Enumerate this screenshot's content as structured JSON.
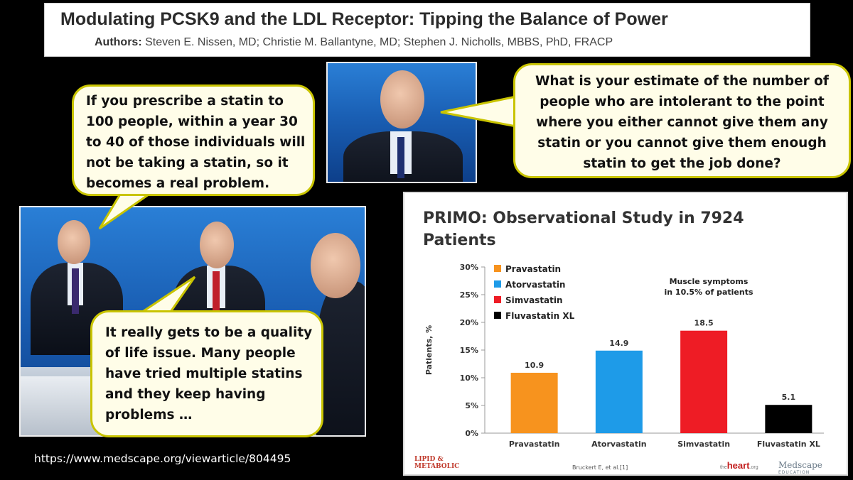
{
  "header": {
    "title": "Modulating PCSK9 and the LDL Receptor: Tipping the Balance of Power",
    "authors_label": "Authors:",
    "authors": "Steven E. Nissen, MD; Christie M. Ballantyne, MD; Stephen J. Nicholls, MBBS, PhD, FRACP"
  },
  "bubbles": {
    "left": "If you prescribe a statin to 100 people, within a year 30 to 40 of those individuals will not be taking a statin, so it becomes a real problem.",
    "right": "What is your estimate of the number of people who are intolerant to the point where you either cannot give them any statin or you cannot give them enough statin to get the job done?",
    "center": "It really gets to be a quality of life issue. Many people have tried multiple statins and they keep having problems …"
  },
  "slide": {
    "title": "PRIMO: Observational Study in 7924 Patients",
    "logo_left": "LIPID & METABOLIC",
    "citation": "Bruckert E, et al.[1]",
    "logo_heart": "heart",
    "logo_heart_prefix": "the",
    "logo_heart_suffix": ".org",
    "logo_medscape": "Medscape",
    "logo_medscape_sub": "EDUCATION"
  },
  "chart_data": {
    "type": "bar",
    "categories": [
      "Pravastatin",
      "Atorvastatin",
      "Simvastatin",
      "Fluvastatin XL"
    ],
    "values": [
      10.9,
      14.9,
      18.5,
      5.1
    ],
    "value_labels": [
      "10.9",
      "14.9",
      "18.5",
      "5.1"
    ],
    "colors": [
      "#f7931e",
      "#1e9be8",
      "#ee1c25",
      "#000000"
    ],
    "ylabel": "Patients, %",
    "ylim": [
      0,
      30
    ],
    "yticks": [
      0,
      5,
      10,
      15,
      20,
      25,
      30
    ],
    "ytick_labels": [
      "0%",
      "5%",
      "10%",
      "15%",
      "20%",
      "25%",
      "30%"
    ],
    "legend": [
      "Pravastatin",
      "Atorvastatin",
      "Simvastatin",
      "Fluvastatin XL"
    ],
    "legend_position": "top-left",
    "annotation": [
      "Muscle symptoms",
      "in 10.5% of patients"
    ],
    "grid": false
  },
  "footer": {
    "url": "https://www.medscape.org/viewarticle/804495"
  }
}
